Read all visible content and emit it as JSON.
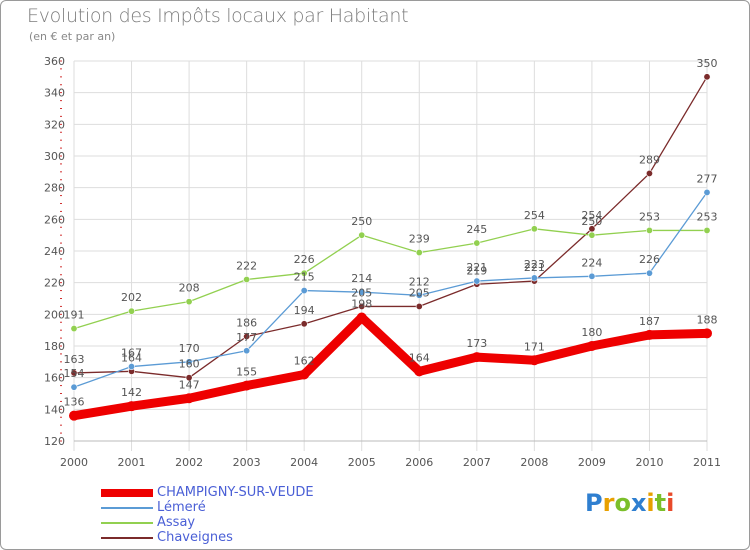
{
  "chart_data": {
    "type": "line",
    "title": "Evolution des Impôts locaux par Habitant",
    "subtitle": "(en € et par an)",
    "x": [
      "2000",
      "2001",
      "2002",
      "2003",
      "2004",
      "2005",
      "2006",
      "2007",
      "2008",
      "2009",
      "2010",
      "2011"
    ],
    "ylim": [
      120,
      360
    ],
    "yticks": [
      120,
      140,
      160,
      180,
      200,
      220,
      240,
      260,
      280,
      300,
      320,
      340,
      360
    ],
    "grid": true,
    "legend_position": "bottom-left",
    "series": [
      {
        "name": "CHAMPIGNY-SUR-VEUDE",
        "color": "#ee0000",
        "values": [
          136,
          142,
          147,
          155,
          162,
          198,
          164,
          173,
          171,
          180,
          187,
          188
        ]
      },
      {
        "name": "Lémeré",
        "color": "#5b9bd5",
        "values": [
          154,
          167,
          170,
          177,
          215,
          214,
          212,
          221,
          223,
          224,
          226,
          277
        ]
      },
      {
        "name": "Assay",
        "color": "#92d050",
        "values": [
          191,
          202,
          208,
          222,
          226,
          250,
          239,
          245,
          254,
          250,
          253,
          253
        ]
      },
      {
        "name": "Chaveignes",
        "color": "#7b2b2b",
        "values": [
          163,
          164,
          160,
          186,
          194,
          205,
          205,
          219,
          221,
          254,
          289,
          350
        ]
      }
    ]
  },
  "logo": {
    "text": "Proxiti"
  }
}
